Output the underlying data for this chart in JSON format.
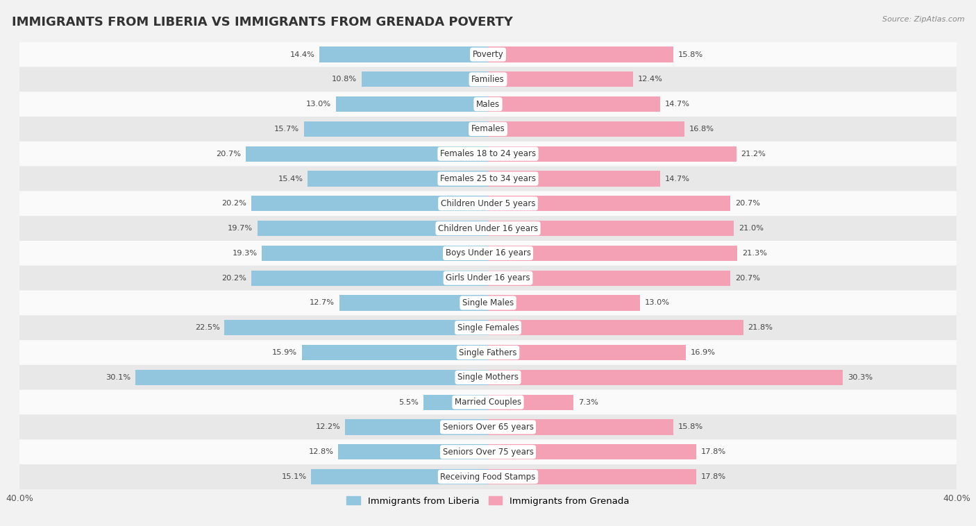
{
  "title": "IMMIGRANTS FROM LIBERIA VS IMMIGRANTS FROM GRENADA POVERTY",
  "source": "Source: ZipAtlas.com",
  "categories": [
    "Poverty",
    "Families",
    "Males",
    "Females",
    "Females 18 to 24 years",
    "Females 25 to 34 years",
    "Children Under 5 years",
    "Children Under 16 years",
    "Boys Under 16 years",
    "Girls Under 16 years",
    "Single Males",
    "Single Females",
    "Single Fathers",
    "Single Mothers",
    "Married Couples",
    "Seniors Over 65 years",
    "Seniors Over 75 years",
    "Receiving Food Stamps"
  ],
  "liberia_values": [
    14.4,
    10.8,
    13.0,
    15.7,
    20.7,
    15.4,
    20.2,
    19.7,
    19.3,
    20.2,
    12.7,
    22.5,
    15.9,
    30.1,
    5.5,
    12.2,
    12.8,
    15.1
  ],
  "grenada_values": [
    15.8,
    12.4,
    14.7,
    16.8,
    21.2,
    14.7,
    20.7,
    21.0,
    21.3,
    20.7,
    13.0,
    21.8,
    16.9,
    30.3,
    7.3,
    15.8,
    17.8,
    17.8
  ],
  "liberia_color": "#92c5de",
  "grenada_color": "#f4a0b5",
  "liberia_label": "Immigrants from Liberia",
  "grenada_label": "Immigrants from Grenada",
  "xlim": 40.0,
  "bar_height": 0.62,
  "bg_color": "#f2f2f2",
  "row_colors": [
    "#fafafa",
    "#e8e8e8"
  ],
  "title_fontsize": 13,
  "label_fontsize": 8.5,
  "value_fontsize": 8.2
}
